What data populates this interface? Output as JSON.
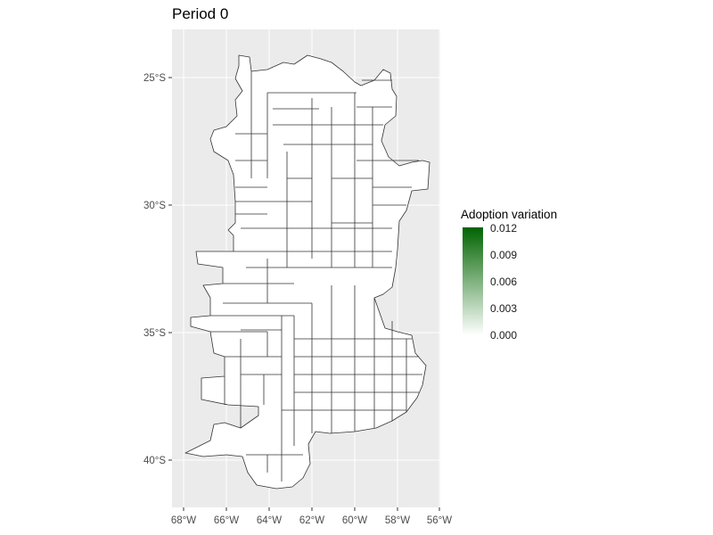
{
  "title": "Period 0",
  "map": {
    "lat_ticks": [
      "25°S",
      "30°S",
      "35°S",
      "40°S"
    ],
    "lon_ticks": [
      "68°W",
      "66°W",
      "64°W",
      "62°W",
      "60°W",
      "58°W",
      "56°W"
    ],
    "panel_background": "#ebebeb",
    "gridline_color": "#ffffff",
    "region_fill": "#ffffff",
    "region_border": "#333333"
  },
  "legend": {
    "title": "Adoption variation",
    "labels": [
      "0.012",
      "0.009",
      "0.006",
      "0.003",
      "0.000"
    ],
    "color_high": "#006400",
    "color_low": "#ffffff",
    "range": [
      0.0,
      0.012
    ]
  }
}
